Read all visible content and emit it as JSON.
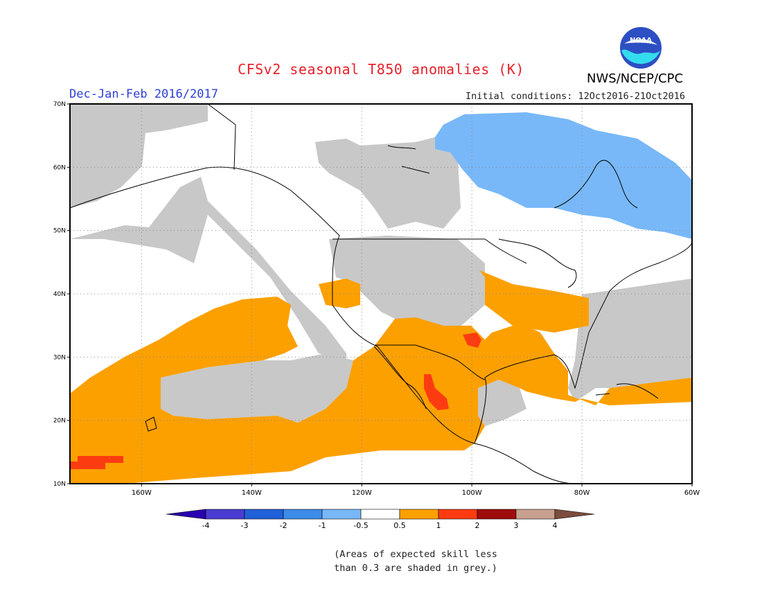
{
  "header": {
    "title": "CFSv2 seasonal T850 anomalies (K)",
    "period": "Dec-Jan-Feb 2016/2017",
    "initial_conditions": "Initial conditions: 12Oct2016-21Oct2016",
    "agency": "NWS/NCEP/CPC",
    "logo_text": "NOAA"
  },
  "map": {
    "lon_range": [
      -173,
      -60
    ],
    "lat_range": [
      10,
      70
    ],
    "lon_labels": [
      "160W",
      "140W",
      "120W",
      "100W",
      "80W",
      "60W"
    ],
    "lat_labels": [
      "10N",
      "20N",
      "30N",
      "40N",
      "50N",
      "60N",
      "70N"
    ],
    "colors": {
      "skill_grey": "#c8c8c8",
      "cool_0_5_1": "#78b8f8",
      "warm_0_5_1": "#fca000",
      "warm_1_2": "#fc3c10",
      "land_outline": "#000000"
    }
  },
  "colorbar": {
    "labels": [
      "-4",
      "-3",
      "-2",
      "-1",
      "-0.5",
      "0.5",
      "1",
      "2",
      "3",
      "4"
    ],
    "colors": [
      "#2a00b0",
      "#4a3cd0",
      "#2060d8",
      "#3c8ce8",
      "#78b8f8",
      "#ffffff",
      "#fca000",
      "#fc3c10",
      "#a00c0c",
      "#c8a090",
      "#7c4c3c"
    ]
  },
  "note": {
    "line1": "(Areas of expected skill less",
    "line2": "than 0.3 are shaded in grey.)"
  }
}
